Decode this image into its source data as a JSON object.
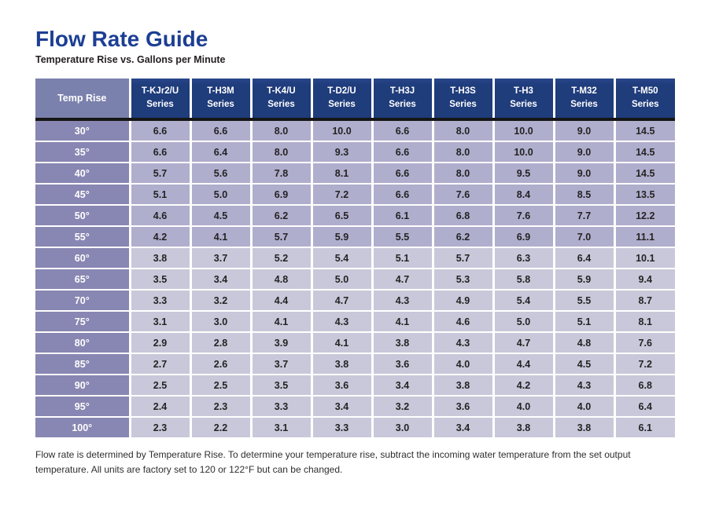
{
  "page": {
    "title": "Flow Rate Guide",
    "subtitle": "Temperature Rise vs. Gallons per Minute",
    "footer_note": "Flow rate is determined by Temperature Rise.  To determine your temperature rise, subtract the incoming water temperature from the set output temperature.  All units are factory set to 120 or 122°F but can be changed."
  },
  "colors": {
    "title_blue": "#1c3f94",
    "header_navy": "#1f3c7b",
    "temp_header_bg": "#7b81ad",
    "temp_col_bg": "#8886b2",
    "row_dark_bg": "#b0aecd",
    "row_light_bg": "#c9c8da",
    "header_rule": "#161616"
  },
  "table": {
    "temp_header": "Temp Rise",
    "series_suffix": "Series",
    "columns": [
      "T-KJr2/U",
      "T-H3M",
      "T-K4/U",
      "T-D2/U",
      "T-H3J",
      "T-H3S",
      "T-H3",
      "T-M32",
      "T-M50"
    ],
    "rows": [
      {
        "temp": "30°",
        "shade": "dark",
        "values": [
          "6.6",
          "6.6",
          "8.0",
          "10.0",
          "6.6",
          "8.0",
          "10.0",
          "9.0",
          "14.5"
        ]
      },
      {
        "temp": "35°",
        "shade": "dark",
        "values": [
          "6.6",
          "6.4",
          "8.0",
          "9.3",
          "6.6",
          "8.0",
          "10.0",
          "9.0",
          "14.5"
        ]
      },
      {
        "temp": "40°",
        "shade": "dark",
        "values": [
          "5.7",
          "5.6",
          "7.8",
          "8.1",
          "6.6",
          "8.0",
          "9.5",
          "9.0",
          "14.5"
        ]
      },
      {
        "temp": "45°",
        "shade": "dark",
        "values": [
          "5.1",
          "5.0",
          "6.9",
          "7.2",
          "6.6",
          "7.6",
          "8.4",
          "8.5",
          "13.5"
        ]
      },
      {
        "temp": "50°",
        "shade": "dark",
        "values": [
          "4.6",
          "4.5",
          "6.2",
          "6.5",
          "6.1",
          "6.8",
          "7.6",
          "7.7",
          "12.2"
        ]
      },
      {
        "temp": "55°",
        "shade": "dark",
        "values": [
          "4.2",
          "4.1",
          "5.7",
          "5.9",
          "5.5",
          "6.2",
          "6.9",
          "7.0",
          "11.1"
        ]
      },
      {
        "temp": "60°",
        "shade": "light",
        "values": [
          "3.8",
          "3.7",
          "5.2",
          "5.4",
          "5.1",
          "5.7",
          "6.3",
          "6.4",
          "10.1"
        ]
      },
      {
        "temp": "65°",
        "shade": "light",
        "values": [
          "3.5",
          "3.4",
          "4.8",
          "5.0",
          "4.7",
          "5.3",
          "5.8",
          "5.9",
          "9.4"
        ]
      },
      {
        "temp": "70°",
        "shade": "light",
        "values": [
          "3.3",
          "3.2",
          "4.4",
          "4.7",
          "4.3",
          "4.9",
          "5.4",
          "5.5",
          "8.7"
        ]
      },
      {
        "temp": "75°",
        "shade": "light",
        "values": [
          "3.1",
          "3.0",
          "4.1",
          "4.3",
          "4.1",
          "4.6",
          "5.0",
          "5.1",
          "8.1"
        ]
      },
      {
        "temp": "80°",
        "shade": "light",
        "values": [
          "2.9",
          "2.8",
          "3.9",
          "4.1",
          "3.8",
          "4.3",
          "4.7",
          "4.8",
          "7.6"
        ]
      },
      {
        "temp": "85°",
        "shade": "light",
        "values": [
          "2.7",
          "2.6",
          "3.7",
          "3.8",
          "3.6",
          "4.0",
          "4.4",
          "4.5",
          "7.2"
        ]
      },
      {
        "temp": "90°",
        "shade": "light",
        "values": [
          "2.5",
          "2.5",
          "3.5",
          "3.6",
          "3.4",
          "3.8",
          "4.2",
          "4.3",
          "6.8"
        ]
      },
      {
        "temp": "95°",
        "shade": "light",
        "values": [
          "2.4",
          "2.3",
          "3.3",
          "3.4",
          "3.2",
          "3.6",
          "4.0",
          "4.0",
          "6.4"
        ]
      },
      {
        "temp": "100°",
        "shade": "light",
        "values": [
          "2.3",
          "2.2",
          "3.1",
          "3.3",
          "3.0",
          "3.4",
          "3.8",
          "3.8",
          "6.1"
        ]
      }
    ]
  }
}
